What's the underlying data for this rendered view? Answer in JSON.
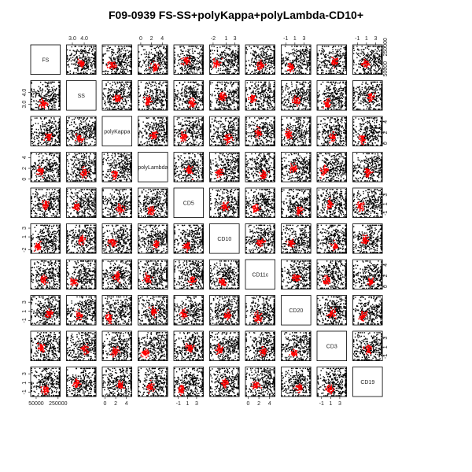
{
  "chart_data": {
    "type": "scatter",
    "title": "F09-0939 FS-SS+polyKappa+polyLambda-CD10+",
    "variables": [
      {
        "name": "FS",
        "range": [
          0,
          270000
        ],
        "ticks": [
          {
            "v": 50000,
            "label": "50000"
          },
          {
            "v": 250000,
            "label": "250000"
          }
        ]
      },
      {
        "name": "SS",
        "range": [
          2.5,
          5.0
        ],
        "ticks": [
          {
            "v": 3.0,
            "label": "3.0"
          },
          {
            "v": 4.0,
            "label": "4.0"
          }
        ]
      },
      {
        "name": "polyKappa",
        "range": [
          -0.5,
          5.0
        ],
        "ticks": [
          {
            "v": 0,
            "label": "0"
          },
          {
            "v": 2,
            "label": "2"
          },
          {
            "v": 4,
            "label": "4"
          }
        ]
      },
      {
        "name": "polyLambda",
        "range": [
          -0.5,
          5.0
        ],
        "ticks": [
          {
            "v": 0,
            "label": "0"
          },
          {
            "v": 2,
            "label": "2"
          },
          {
            "v": 4,
            "label": "4"
          }
        ]
      },
      {
        "name": "CD5",
        "range": [
          -2.0,
          4.5
        ],
        "ticks": [
          {
            "v": -1,
            "label": "-1"
          },
          {
            "v": 1,
            "label": "1"
          },
          {
            "v": 3,
            "label": "3"
          }
        ]
      },
      {
        "name": "CD10",
        "range": [
          -2.8,
          4.0
        ],
        "ticks": [
          {
            "v": -2,
            "label": "-2"
          },
          {
            "v": 1,
            "label": "1"
          },
          {
            "v": 3,
            "label": "3"
          }
        ]
      },
      {
        "name": "CD11c",
        "range": [
          -0.5,
          5.0
        ],
        "ticks": [
          {
            "v": 0,
            "label": "0"
          },
          {
            "v": 2,
            "label": "2"
          },
          {
            "v": 4,
            "label": "4"
          }
        ]
      },
      {
        "name": "CD20",
        "range": [
          -2.0,
          4.5
        ],
        "ticks": [
          {
            "v": -1,
            "label": "-1"
          },
          {
            "v": 1,
            "label": "1"
          },
          {
            "v": 3,
            "label": "3"
          }
        ]
      },
      {
        "name": "CD3",
        "range": [
          -2.0,
          4.5
        ],
        "ticks": [
          {
            "v": -1,
            "label": "-1"
          },
          {
            "v": 1,
            "label": "1"
          },
          {
            "v": 3,
            "label": "3"
          }
        ]
      },
      {
        "name": "CD19",
        "range": [
          -2.0,
          4.5
        ],
        "ticks": [
          {
            "v": -1,
            "label": "-1"
          },
          {
            "v": 1,
            "label": "1"
          },
          {
            "v": 3,
            "label": "3"
          }
        ]
      }
    ],
    "all_events_color": "#000000",
    "gated_events_color": "#ff0000",
    "grid": false,
    "legend": "none"
  }
}
